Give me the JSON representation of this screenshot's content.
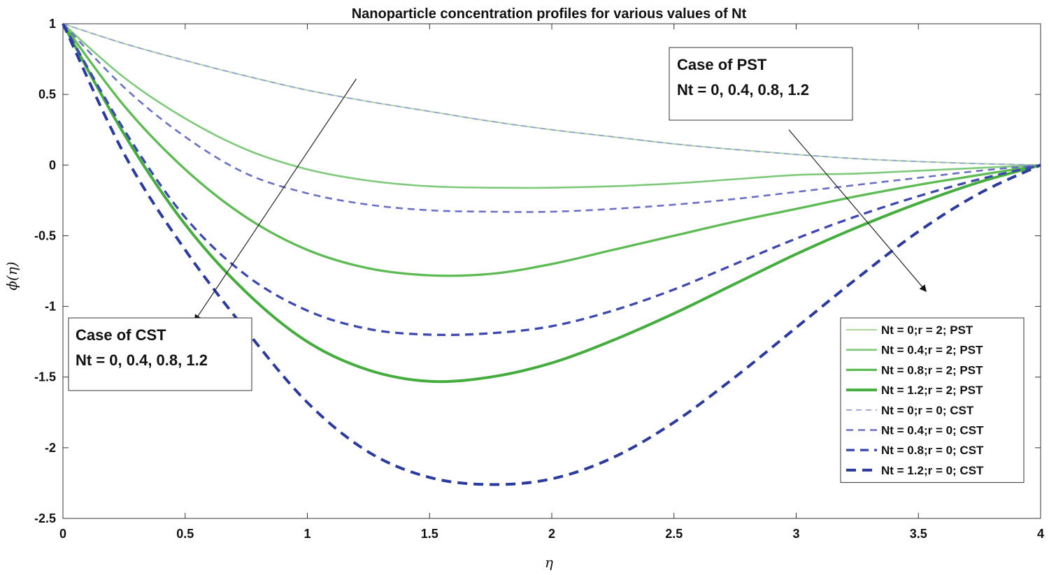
{
  "chart_data": {
    "type": "line",
    "title": "Nanoparticle concentration profiles for various values of Nt",
    "xlabel": "η",
    "ylabel": "ϕ(η)",
    "xlim": [
      0,
      4
    ],
    "ylim": [
      -2.5,
      1
    ],
    "xticks": [
      0,
      0.5,
      1,
      1.5,
      2,
      2.5,
      3,
      3.5,
      4
    ],
    "xtick_labels": [
      "0",
      "0.5",
      "1",
      "1.5",
      "2",
      "2.5",
      "3",
      "3.5",
      "4"
    ],
    "yticks": [
      1,
      0.5,
      0,
      -0.5,
      -1,
      -1.5,
      -2,
      -2.5
    ],
    "ytick_labels": [
      "1",
      "0.5",
      "0",
      "-0.5",
      "-1",
      "-1.5",
      "-2",
      "-2.5"
    ],
    "grid": false,
    "legend_position": "bottom-right",
    "series": [
      {
        "name": "Nt = 0;r = 2; PST",
        "color": "#a6d99a",
        "style": "solid",
        "weight": 1,
        "x": [
          0,
          0.25,
          0.5,
          0.75,
          1,
          1.25,
          1.5,
          1.75,
          2,
          2.25,
          2.5,
          2.75,
          3,
          3.25,
          3.5,
          3.75,
          4
        ],
        "y": [
          1,
          0.86,
          0.74,
          0.63,
          0.53,
          0.45,
          0.38,
          0.31,
          0.25,
          0.2,
          0.15,
          0.11,
          0.075,
          0.045,
          0.025,
          0.01,
          0
        ]
      },
      {
        "name": "Nt = 0.4;r = 2; PST",
        "color": "#7ec97a",
        "style": "solid",
        "weight": 2,
        "x": [
          0,
          0.25,
          0.5,
          0.75,
          1,
          1.25,
          1.5,
          1.75,
          2,
          2.25,
          2.5,
          2.75,
          3,
          3.25,
          3.5,
          3.75,
          4
        ],
        "y": [
          1,
          0.62,
          0.33,
          0.11,
          -0.03,
          -0.11,
          -0.15,
          -0.16,
          -0.16,
          -0.15,
          -0.13,
          -0.1,
          -0.07,
          -0.06,
          -0.04,
          -0.02,
          0
        ]
      },
      {
        "name": "Nt = 0.8;r = 2; PST",
        "color": "#5dbb53",
        "style": "solid",
        "weight": 3,
        "x": [
          0,
          0.25,
          0.5,
          0.75,
          1,
          1.25,
          1.5,
          1.75,
          2,
          2.25,
          2.5,
          2.75,
          3,
          3.25,
          3.5,
          3.75,
          4
        ],
        "y": [
          1,
          0.42,
          -0.03,
          -0.37,
          -0.6,
          -0.73,
          -0.78,
          -0.77,
          -0.7,
          -0.6,
          -0.5,
          -0.4,
          -0.31,
          -0.22,
          -0.14,
          -0.07,
          0
        ]
      },
      {
        "name": "Nt = 1.2;r = 2; PST",
        "color": "#44ad3e",
        "style": "solid",
        "weight": 4,
        "x": [
          0,
          0.25,
          0.5,
          0.75,
          1,
          1.25,
          1.5,
          1.75,
          2,
          2.25,
          2.5,
          2.75,
          3,
          3.25,
          3.5,
          3.75,
          4
        ],
        "y": [
          1,
          0.22,
          -0.42,
          -0.9,
          -1.25,
          -1.45,
          -1.53,
          -1.5,
          -1.4,
          -1.24,
          -1.05,
          -0.84,
          -0.63,
          -0.44,
          -0.27,
          -0.12,
          0
        ]
      },
      {
        "name": "Nt = 0;r = 0; CST",
        "color": "#9a9fd8",
        "style": "dashed",
        "weight": 1,
        "x": [
          0,
          0.25,
          0.5,
          0.75,
          1,
          1.25,
          1.5,
          1.75,
          2,
          2.25,
          2.5,
          2.75,
          3,
          3.25,
          3.5,
          3.75,
          4
        ],
        "y": [
          1,
          0.86,
          0.74,
          0.63,
          0.53,
          0.45,
          0.38,
          0.31,
          0.25,
          0.2,
          0.15,
          0.11,
          0.075,
          0.045,
          0.025,
          0.01,
          0
        ]
      },
      {
        "name": "Nt = 0.4;r = 0; CST",
        "color": "#6a70c8",
        "style": "dashed",
        "weight": 2,
        "x": [
          0,
          0.25,
          0.5,
          0.75,
          1,
          1.25,
          1.5,
          1.75,
          2,
          2.25,
          2.5,
          2.75,
          3,
          3.25,
          3.5,
          3.75,
          4
        ],
        "y": [
          1,
          0.55,
          0.2,
          -0.06,
          -0.2,
          -0.28,
          -0.32,
          -0.33,
          -0.33,
          -0.31,
          -0.28,
          -0.24,
          -0.19,
          -0.14,
          -0.09,
          -0.04,
          0
        ]
      },
      {
        "name": "Nt = 0.8;r = 0; CST",
        "color": "#3c48b0",
        "style": "dashed",
        "weight": 3,
        "x": [
          0,
          0.25,
          0.5,
          0.75,
          1,
          1.25,
          1.5,
          1.75,
          2,
          2.25,
          2.5,
          2.75,
          3,
          3.25,
          3.5,
          3.75,
          4
        ],
        "y": [
          1,
          0.25,
          -0.37,
          -0.78,
          -1.03,
          -1.16,
          -1.2,
          -1.19,
          -1.14,
          -1.03,
          -0.88,
          -0.7,
          -0.52,
          -0.36,
          -0.22,
          -0.1,
          0
        ]
      },
      {
        "name": "Nt = 1.2;r = 0; CST",
        "color": "#2b3a9e",
        "style": "dashed",
        "weight": 4,
        "x": [
          0,
          0.25,
          0.5,
          0.75,
          1,
          1.25,
          1.5,
          1.75,
          2,
          2.25,
          2.5,
          2.75,
          3,
          3.25,
          3.5,
          3.75,
          4
        ],
        "y": [
          1,
          0.08,
          -0.6,
          -1.17,
          -1.68,
          -2.03,
          -2.21,
          -2.26,
          -2.22,
          -2.07,
          -1.82,
          -1.5,
          -1.15,
          -0.8,
          -0.47,
          -0.2,
          0
        ]
      }
    ],
    "annotations": [
      {
        "lines": [
          "Case of PST",
          "Nt = 0, 0.4, 0.8, 1.2"
        ],
        "arrow_from": [
          2.97,
          0.25
        ],
        "arrow_to": [
          3.53,
          -0.89
        ]
      },
      {
        "lines": [
          "Case of CST",
          "Nt = 0, 0.4, 0.8, 1.2"
        ],
        "arrow_from": [
          1.2,
          0.61
        ],
        "arrow_to": [
          0.54,
          -1.1
        ]
      }
    ]
  }
}
